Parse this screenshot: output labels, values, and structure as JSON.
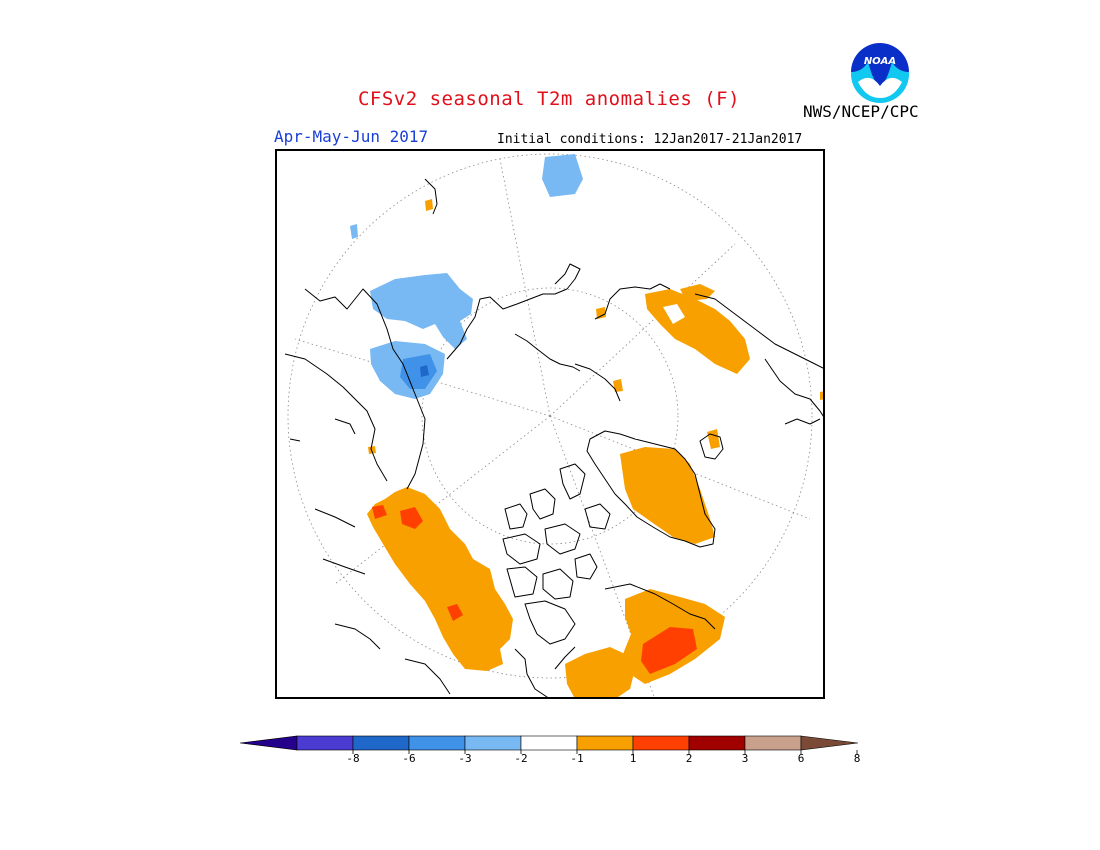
{
  "header": {
    "title": "CFSv2 seasonal T2m anomalies (F)",
    "period": "Apr-May-Jun 2017",
    "initial_conditions": "Initial conditions: 12Jan2017-21Jan2017",
    "org": "NWS/NCEP/CPC",
    "logo_text": "NOAA"
  },
  "legend": {
    "tick_labels": [
      "-8",
      "-6",
      "-3",
      "-2",
      "-1",
      "1",
      "2",
      "3",
      "6",
      "8"
    ],
    "colors": [
      "#24008b",
      "#4b3bd1",
      "#1f67c9",
      "#3f92e8",
      "#78b9f4",
      "#ffffff",
      "#f7a000",
      "#ff4000",
      "#a00000",
      "#c8a08c",
      "#7a4a36"
    ]
  },
  "map": {
    "projection": "north-polar-stereographic",
    "colors": {
      "cold_light": "#78b9f4",
      "cold_mid": "#3f92e8",
      "cold_dark": "#1f67c9",
      "warm_light": "#f7a000",
      "warm_mid": "#ff4000"
    }
  }
}
